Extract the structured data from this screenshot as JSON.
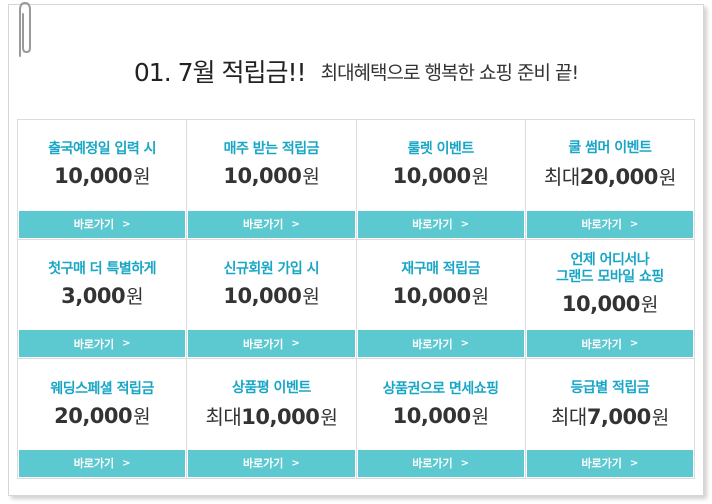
{
  "header": {
    "title": "01. 7월 적립금!!",
    "subtitle": "최대혜택으로 행복한 쇼핑 준비 끝!"
  },
  "cta_label": "바로가기",
  "cta_arrow": ">",
  "currency": "원",
  "accent_color": "#5cc9d0",
  "title_color": "#19a6c6",
  "cells": [
    {
      "title": "출국예정일 입력 시",
      "prefix": "",
      "amount": "10,000"
    },
    {
      "title": "매주 받는 적립금",
      "prefix": "",
      "amount": "10,000"
    },
    {
      "title": "룰렛 이벤트",
      "prefix": "",
      "amount": "10,000"
    },
    {
      "title": "쿨 썸머 이벤트",
      "prefix": "최대",
      "amount": "20,000"
    },
    {
      "title": "첫구매 더 특별하게",
      "prefix": "",
      "amount": "3,000"
    },
    {
      "title": "신규회원 가입 시",
      "prefix": "",
      "amount": "10,000"
    },
    {
      "title": "재구매 적립금",
      "prefix": "",
      "amount": "10,000"
    },
    {
      "title": "언제 어디서나\n그랜드 모바일 쇼핑",
      "prefix": "",
      "amount": "10,000"
    },
    {
      "title": "웨딩스페셜 적립금",
      "prefix": "",
      "amount": "20,000"
    },
    {
      "title": "상품평 이벤트",
      "prefix": "최대",
      "amount": "10,000"
    },
    {
      "title": "상품권으로 면세쇼핑",
      "prefix": "",
      "amount": "10,000"
    },
    {
      "title": "등급별 적립금",
      "prefix": "최대",
      "amount": "7,000"
    }
  ]
}
